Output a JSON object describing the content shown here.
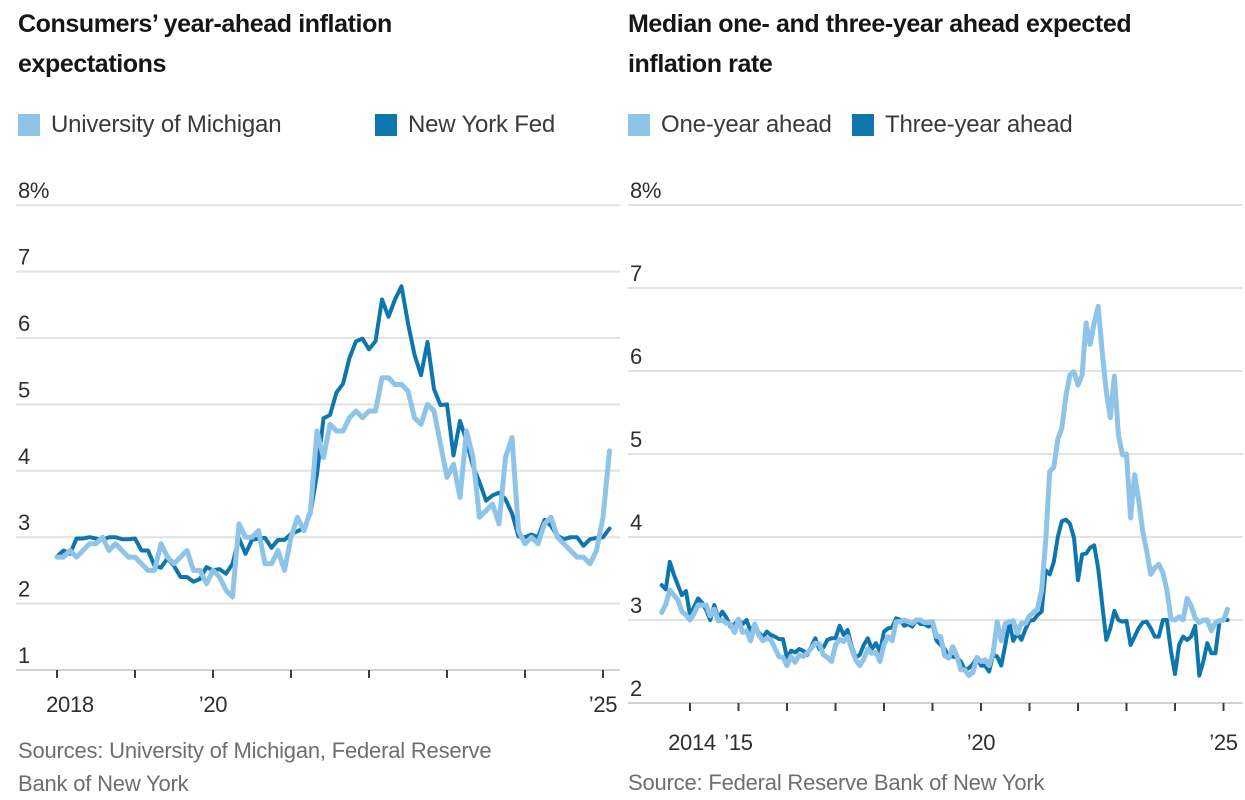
{
  "page": {
    "background": "#ffffff"
  },
  "colors": {
    "light_blue": "#8fc4e9",
    "dark_blue": "#0e76ad",
    "gridline": "#e2e2e2",
    "axis_line": "#d2d2d2",
    "tick_mark": "#3f3f3f",
    "tick_label": "#2e2e2e",
    "title": "#161616",
    "source": "#6e6e6e"
  },
  "chart_data": [
    {
      "type": "line",
      "title": "Consumers’ year-ahead inflation expectations",
      "title_lines": [
        "Consumers’ year-ahead inflation",
        "expectations"
      ],
      "xlabel": "",
      "ylabel": "",
      "grid": true,
      "legend_position": "top-left",
      "ylim": [
        1,
        8
      ],
      "xlim": [
        2017.95,
        2025.25
      ],
      "y_ticks": [
        {
          "value": 8,
          "label": "8%"
        },
        {
          "value": 7,
          "label": "7"
        },
        {
          "value": 6,
          "label": "6"
        },
        {
          "value": 5,
          "label": "5"
        },
        {
          "value": 4,
          "label": "4"
        },
        {
          "value": 3,
          "label": "3"
        },
        {
          "value": 2,
          "label": "2"
        },
        {
          "value": 1,
          "label": "1"
        }
      ],
      "x_ticks": [
        {
          "year": 2018,
          "label": "2018"
        },
        {
          "year": 2019,
          "label": ""
        },
        {
          "year": 2020,
          "label": "’20"
        },
        {
          "year": 2021,
          "label": ""
        },
        {
          "year": 2022,
          "label": ""
        },
        {
          "year": 2023,
          "label": ""
        },
        {
          "year": 2024,
          "label": ""
        },
        {
          "year": 2025,
          "label": "’25"
        }
      ],
      "legend": [
        {
          "label": "University of Michigan",
          "color": "light_blue"
        },
        {
          "label": "New York Fed",
          "color": "dark_blue"
        }
      ],
      "source_lines": [
        "Sources: University of Michigan, Federal Reserve",
        "Bank of New York"
      ],
      "series": [
        {
          "name": "University of Michigan",
          "color": "light_blue",
          "stroke_width": 5,
          "x_start": 2018.0,
          "x_step": 0.083333,
          "values": [
            2.7,
            2.7,
            2.8,
            2.7,
            2.8,
            2.9,
            2.9,
            3.0,
            2.8,
            2.9,
            2.8,
            2.7,
            2.7,
            2.6,
            2.5,
            2.5,
            2.9,
            2.7,
            2.6,
            2.7,
            2.8,
            2.5,
            2.5,
            2.3,
            2.5,
            2.4,
            2.2,
            2.1,
            3.2,
            3.0,
            3.0,
            3.1,
            2.6,
            2.6,
            2.8,
            2.5,
            3.0,
            3.3,
            3.1,
            3.4,
            4.6,
            4.2,
            4.7,
            4.6,
            4.6,
            4.8,
            4.9,
            4.8,
            4.9,
            4.9,
            5.4,
            5.4,
            5.3,
            5.3,
            5.2,
            4.8,
            4.7,
            5.0,
            4.9,
            4.4,
            3.9,
            4.1,
            3.6,
            4.6,
            4.2,
            3.3,
            3.4,
            3.5,
            3.2,
            4.2,
            4.5,
            3.1,
            2.9,
            3.0,
            2.9,
            3.2,
            3.3,
            3.0,
            2.9,
            2.8,
            2.7,
            2.7,
            2.6,
            2.8,
            3.3,
            4.3
          ]
        },
        {
          "name": "New York Fed",
          "color": "dark_blue",
          "stroke_width": 4,
          "x_start": 2018.0,
          "x_step": 0.083333,
          "values": [
            2.71,
            2.8,
            2.75,
            2.98,
            2.98,
            3.0,
            2.98,
            2.96,
            3.0,
            3.0,
            2.97,
            2.97,
            2.98,
            2.8,
            2.8,
            2.57,
            2.54,
            2.68,
            2.57,
            2.4,
            2.4,
            2.33,
            2.37,
            2.55,
            2.5,
            2.52,
            2.45,
            2.6,
            2.98,
            2.75,
            2.96,
            2.98,
            2.99,
            2.84,
            2.96,
            2.96,
            3.05,
            3.09,
            3.14,
            3.36,
            3.95,
            4.79,
            4.84,
            5.18,
            5.31,
            5.7,
            5.95,
            5.99,
            5.83,
            5.95,
            6.58,
            6.32,
            6.58,
            6.78,
            6.22,
            5.75,
            5.44,
            5.94,
            5.23,
            4.99,
            5.0,
            4.23,
            4.75,
            4.45,
            4.07,
            3.83,
            3.55,
            3.63,
            3.67,
            3.57,
            3.36,
            3.01,
            3.0,
            3.04,
            3.0,
            3.26,
            3.17,
            3.02,
            2.97,
            3.0,
            3.0,
            2.87,
            2.97,
            2.99,
            3.0,
            3.13
          ]
        }
      ]
    },
    {
      "type": "line",
      "title": "Median one- and three-year ahead expected inflation rate",
      "title_lines": [
        "Median one- and three-year ahead expected",
        "inflation rate"
      ],
      "xlabel": "",
      "ylabel": "",
      "grid": true,
      "legend_position": "top-left",
      "ylim": [
        2,
        8
      ],
      "xlim": [
        2013.3,
        2025.4
      ],
      "y_ticks": [
        {
          "value": 8,
          "label": "8%"
        },
        {
          "value": 7,
          "label": "7"
        },
        {
          "value": 6,
          "label": "6"
        },
        {
          "value": 5,
          "label": "5"
        },
        {
          "value": 4,
          "label": "4"
        },
        {
          "value": 3,
          "label": "3"
        },
        {
          "value": 2,
          "label": "2"
        }
      ],
      "x_ticks": [
        {
          "year": 2014,
          "label": "2014"
        },
        {
          "year": 2015,
          "label": "’15"
        },
        {
          "year": 2016,
          "label": ""
        },
        {
          "year": 2017,
          "label": ""
        },
        {
          "year": 2018,
          "label": ""
        },
        {
          "year": 2019,
          "label": ""
        },
        {
          "year": 2020,
          "label": "’20"
        },
        {
          "year": 2021,
          "label": ""
        },
        {
          "year": 2022,
          "label": ""
        },
        {
          "year": 2023,
          "label": ""
        },
        {
          "year": 2024,
          "label": ""
        },
        {
          "year": 2025,
          "label": "’25"
        }
      ],
      "legend": [
        {
          "label": "One-year ahead",
          "color": "light_blue"
        },
        {
          "label": "Three-year ahead",
          "color": "dark_blue"
        }
      ],
      "source_lines": [
        "Source: Federal Reserve Bank of New York"
      ],
      "series": [
        {
          "name": "One-year ahead",
          "color": "light_blue",
          "stroke_width": 5,
          "x_start": 2013.417,
          "x_step": 0.083333,
          "values": [
            3.09,
            3.19,
            3.36,
            3.3,
            3.24,
            3.1,
            3.06,
            3.0,
            3.08,
            3.18,
            3.18,
            3.18,
            3.05,
            3.13,
            2.99,
            3.0,
            2.96,
            2.95,
            2.85,
            3.01,
            2.85,
            2.87,
            2.75,
            2.95,
            2.82,
            2.75,
            2.78,
            2.76,
            2.66,
            2.56,
            2.55,
            2.45,
            2.56,
            2.49,
            2.58,
            2.56,
            2.6,
            2.66,
            2.72,
            2.71,
            2.58,
            2.55,
            2.5,
            2.7,
            2.77,
            2.74,
            2.8,
            2.65,
            2.52,
            2.45,
            2.53,
            2.65,
            2.6,
            2.61,
            2.5,
            2.71,
            2.8,
            2.75,
            2.98,
            2.98,
            3.0,
            2.98,
            2.96,
            3.0,
            3.0,
            2.97,
            2.97,
            2.98,
            2.8,
            2.8,
            2.57,
            2.54,
            2.68,
            2.57,
            2.4,
            2.4,
            2.33,
            2.37,
            2.55,
            2.5,
            2.52,
            2.45,
            2.6,
            2.98,
            2.75,
            2.96,
            2.98,
            2.99,
            2.84,
            2.96,
            2.96,
            3.05,
            3.09,
            3.14,
            3.36,
            3.95,
            4.79,
            4.84,
            5.18,
            5.31,
            5.7,
            5.95,
            5.99,
            5.83,
            5.95,
            6.58,
            6.32,
            6.58,
            6.78,
            6.22,
            5.75,
            5.44,
            5.94,
            5.23,
            4.99,
            5.0,
            4.23,
            4.75,
            4.45,
            4.07,
            3.83,
            3.55,
            3.63,
            3.67,
            3.57,
            3.36,
            3.01,
            3.0,
            3.04,
            3.0,
            3.26,
            3.17,
            3.02,
            2.97,
            3.0,
            3.0,
            2.87,
            2.97,
            2.99,
            3.0,
            3.13
          ]
        },
        {
          "name": "Three-year ahead",
          "color": "dark_blue",
          "stroke_width": 4,
          "x_start": 2013.417,
          "x_step": 0.083333,
          "values": [
            3.42,
            3.37,
            3.7,
            3.55,
            3.42,
            3.3,
            3.35,
            3.06,
            3.16,
            3.26,
            3.21,
            3.12,
            3.0,
            3.18,
            3.02,
            3.1,
            3.03,
            2.92,
            2.95,
            3.0,
            2.95,
            3.0,
            2.86,
            2.95,
            2.85,
            2.79,
            2.86,
            2.82,
            2.8,
            2.77,
            2.77,
            2.54,
            2.63,
            2.61,
            2.65,
            2.63,
            2.58,
            2.68,
            2.78,
            2.65,
            2.67,
            2.76,
            2.78,
            2.78,
            2.93,
            2.82,
            2.88,
            2.68,
            2.55,
            2.58,
            2.7,
            2.78,
            2.65,
            2.72,
            2.62,
            2.86,
            2.9,
            2.91,
            3.02,
            3.0,
            2.93,
            2.95,
            2.92,
            3.0,
            2.95,
            2.95,
            2.92,
            2.95,
            2.75,
            2.7,
            2.65,
            2.56,
            2.56,
            2.55,
            2.5,
            2.4,
            2.42,
            2.47,
            2.55,
            2.45,
            2.45,
            2.38,
            2.58,
            2.56,
            2.45,
            2.7,
            2.97,
            2.75,
            2.84,
            2.76,
            2.89,
            2.99,
            3.0,
            3.06,
            3.1,
            3.6,
            3.55,
            3.7,
            4.0,
            4.19,
            4.21,
            4.16,
            3.99,
            3.48,
            3.79,
            3.8,
            3.87,
            3.9,
            3.62,
            3.18,
            2.76,
            2.9,
            3.11,
            3.0,
            2.98,
            2.99,
            2.7,
            2.8,
            2.9,
            2.97,
            2.98,
            2.9,
            2.8,
            2.8,
            3.0,
            3.0,
            2.62,
            2.35,
            2.7,
            2.8,
            2.76,
            2.8,
            2.93,
            2.33,
            2.5,
            2.72,
            2.6,
            2.6,
            2.98,
            3.0,
            3.0
          ]
        }
      ]
    }
  ]
}
